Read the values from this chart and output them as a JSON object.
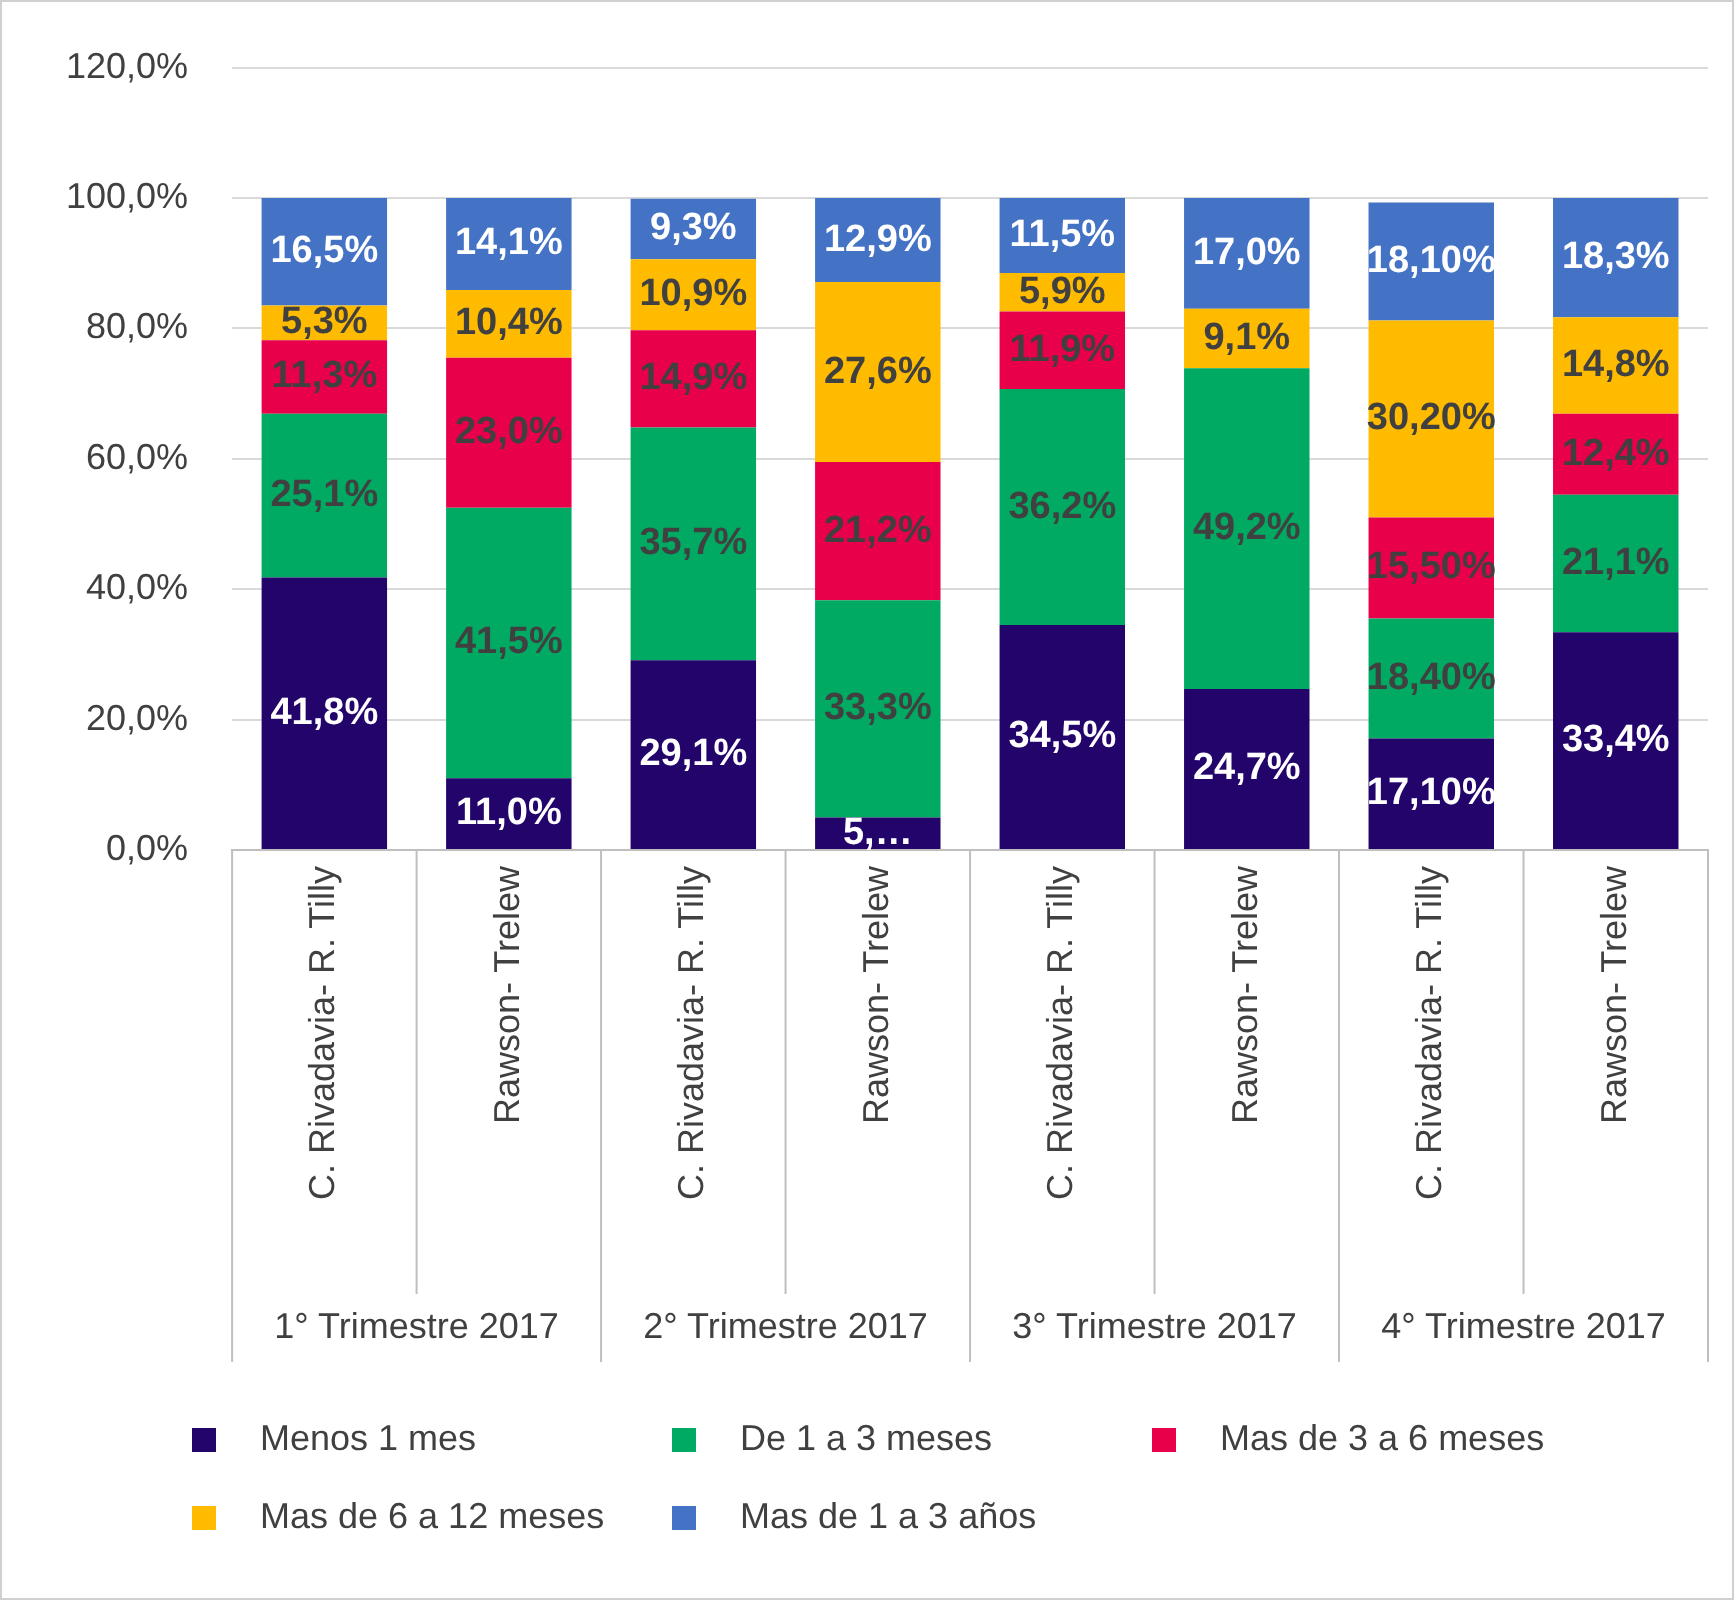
{
  "chart_data": {
    "type": "bar",
    "stacked": true,
    "categories": [
      "C. Rivadavia- R. Tilly",
      "Rawson- Trelew",
      "C. Rivadavia- R. Tilly",
      "Rawson- Trelew",
      "C. Rivadavia- R. Tilly",
      "Rawson- Trelew",
      "C. Rivadavia- R. Tilly",
      "Rawson- Trelew"
    ],
    "annotations": [
      "1° Trimestre 2017",
      "2° Trimestre 2017",
      "3° Trimestre 2017",
      "4° Trimestre 2017"
    ],
    "series": [
      {
        "name": "Menos 1 mes",
        "color": "#23046b",
        "values": [
          41.8,
          11.0,
          29.1,
          5.0,
          34.5,
          24.7,
          17.1,
          33.4
        ],
        "value_labels": [
          "41,8%",
          "11,0%",
          "29,1%",
          "5,…",
          "34,5%",
          "24,7%",
          "17,10%",
          "33,4%"
        ]
      },
      {
        "name": "De 1 a 3 meses",
        "color": "#00aa63",
        "values": [
          25.1,
          41.5,
          35.7,
          33.3,
          36.2,
          49.2,
          18.4,
          21.1
        ],
        "value_labels": [
          "25,1%",
          "41,5%",
          "35,7%",
          "33,3%",
          "36,2%",
          "49,2%",
          "18,40%",
          "21,1%"
        ]
      },
      {
        "name": "Mas de 3 a 6 meses",
        "color": "#e8004a",
        "values": [
          11.3,
          23.0,
          14.9,
          21.2,
          11.9,
          null,
          15.5,
          12.4
        ],
        "value_labels": [
          "11,3%",
          "23,0%",
          "14,9%",
          "21,2%",
          "11,9%",
          null,
          "15,50%",
          "12,4%"
        ]
      },
      {
        "name": "Mas de 6 a 12 meses",
        "color": "#ffbb00",
        "values": [
          5.3,
          10.4,
          10.9,
          27.6,
          5.9,
          9.1,
          30.2,
          14.8
        ],
        "value_labels": [
          "5,3%",
          "10,4%",
          "10,9%",
          "27,6%",
          "5,9%",
          "9,1%",
          "30,20%",
          "14,8%"
        ]
      },
      {
        "name": "Mas de 1 a 3 años",
        "color": "#4472c4",
        "values": [
          16.5,
          14.1,
          9.3,
          12.9,
          11.5,
          17.0,
          18.1,
          18.3
        ],
        "value_labels": [
          "16,5%",
          "14,1%",
          "9,3%",
          "12,9%",
          "11,5%",
          "17,0%",
          "18,10%",
          "18,3%"
        ]
      }
    ],
    "ylim": [
      0,
      120
    ],
    "yticks": [
      {
        "value": 0,
        "label": "0,0%"
      },
      {
        "value": 20,
        "label": "20,0%"
      },
      {
        "value": 40,
        "label": "40,0%"
      },
      {
        "value": 60,
        "label": "60,0%"
      },
      {
        "value": 80,
        "label": "80,0%"
      },
      {
        "value": 100,
        "label": "100,0%"
      },
      {
        "value": 120,
        "label": "120,0%"
      }
    ],
    "grid": "y",
    "legend": "bottom"
  }
}
